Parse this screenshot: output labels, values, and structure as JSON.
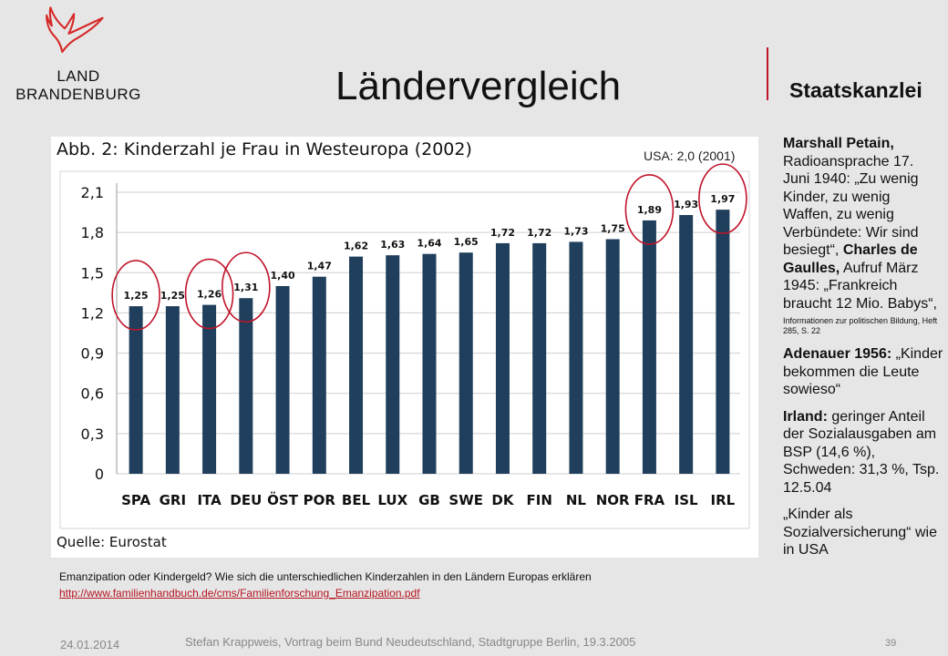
{
  "header": {
    "logo_line1": "LAND",
    "logo_line2": "BRANDENBURG",
    "title": "Ländervergleich",
    "org": "Staatskanzlei"
  },
  "colors": {
    "bar": "#1f3f5c",
    "accent": "#c0142a",
    "logo_red": "#d62a2a"
  },
  "chart_data": {
    "type": "bar",
    "title": "Abb. 2: Kinderzahl je Frau in Westeuropa (2002)",
    "source": "Quelle: Eurostat",
    "categories": [
      "SPA",
      "GRI",
      "ITA",
      "DEU",
      "ÖST",
      "POR",
      "BEL",
      "LUX",
      "GB",
      "SWE",
      "DK",
      "FIN",
      "NL",
      "NOR",
      "FRA",
      "ISL",
      "IRL"
    ],
    "values": [
      1.25,
      1.25,
      1.26,
      1.31,
      1.4,
      1.47,
      1.62,
      1.63,
      1.64,
      1.65,
      1.72,
      1.72,
      1.73,
      1.75,
      1.89,
      1.93,
      1.97
    ],
    "data_labels": [
      "1,25",
      "1,25",
      "1,26",
      "1,31",
      "1,40",
      "1,47",
      "1,62",
      "1,63",
      "1,64",
      "1,65",
      "1,72",
      "1,72",
      "1,73",
      "1,75",
      "1,89",
      "1,93",
      "1,97"
    ],
    "yticks": [
      0,
      0.3,
      0.6,
      0.9,
      1.2,
      1.5,
      1.8,
      2.1
    ],
    "ytick_labels": [
      "0",
      "0,3",
      "0,6",
      "0,9",
      "1,2",
      "1,5",
      "1,8",
      "2,1"
    ],
    "ylim": [
      0,
      2.1
    ],
    "grid": true,
    "highlighted": [
      "SPA",
      "ITA",
      "DEU",
      "FRA",
      "IRL"
    ]
  },
  "usa_note": "USA: 2,0 (2001)",
  "sidebar": {
    "p1_bold": "Marshall Petain,",
    "p1_text": " Radioansprache 17. Juni 1940: „Zu wenig Kinder, zu wenig Waffen, zu wenig Verbündete: Wir sind besiegt“, ",
    "p1_bold2": "Charles de Gaulles,",
    "p1_text2": " Aufruf März 1945: „Frankreich braucht 12 Mio. Babys“,",
    "p1_small": "Informationen zur politischen Bildung, Heft 285, S. 22",
    "p2_bold": "Adenauer 1956:",
    "p2_text": " „Kinder bekommen die Leute sowieso“",
    "p3_bold": "Irland:",
    "p3_text": " geringer Anteil der Sozialausgaben am BSP (14,6 %), Schweden: 31,3 %, Tsp. 12.5.04",
    "p4_text": "„Kinder als Sozialversicherung“ wie in USA"
  },
  "caption": {
    "text": "Emanzipation oder Kindergeld? Wie sich die unterschiedlichen Kinderzahlen in den Ländern Europas erklären",
    "link": "http://www.familienhandbuch.de/cms/Familienforschung_Emanzipation.pdf"
  },
  "footer": {
    "date": "24.01.2014",
    "center": "Stefan Krappweis, Vortrag beim Bund Neudeutschland, Stadtgruppe Berlin, 19.3.2005",
    "page": "39"
  }
}
